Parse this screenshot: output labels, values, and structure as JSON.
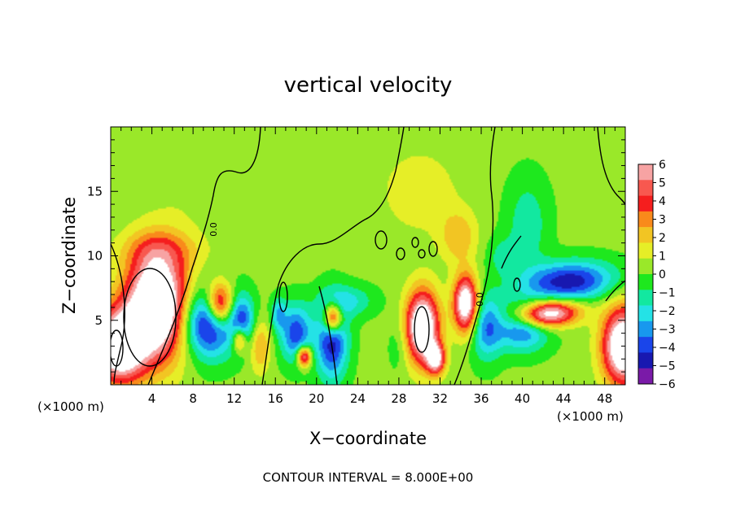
{
  "chart_data": {
    "type": "heatmap",
    "title": "vertical velocity",
    "xlabel": "X−coordinate",
    "ylabel": "Z−coordinate",
    "x_unit": "(×1000 m)",
    "xlim": [
      0,
      50
    ],
    "ylim": [
      0,
      20
    ],
    "x_tick_labels": [
      "4",
      "8",
      "12",
      "16",
      "20",
      "24",
      "28",
      "32",
      "36",
      "40",
      "44",
      "48"
    ],
    "y_tick_labels": [
      "5",
      "10",
      "15"
    ],
    "colorbar": {
      "levels": [
        "6",
        "5",
        "4",
        "3",
        "2",
        "1",
        "0",
        "−1",
        "−2",
        "−3",
        "−4",
        "−5",
        "−6"
      ],
      "range": [
        -6,
        6
      ]
    },
    "contour_label": "0.0",
    "footer": "CONTOUR INTERVAL = 8.000E+00",
    "cells": [
      {
        "name": "updraft-0",
        "x": 0.8,
        "z": 3.0,
        "rx": 2.5,
        "rz": 2.8,
        "a": 10
      },
      {
        "name": "updraft-4",
        "x": 4.5,
        "z": 6.2,
        "rx": 3.0,
        "rz": 4.2,
        "a": 11
      },
      {
        "name": "updraft-4-upper",
        "x": 5.0,
        "z": 10.5,
        "rx": 4.0,
        "rz": 1.5,
        "a": 2
      },
      {
        "name": "updraft-10",
        "x": 10.6,
        "z": 6.2,
        "rx": 1.3,
        "rz": 1.7,
        "a": 8
      },
      {
        "name": "updraft-12",
        "x": 12.5,
        "z": 3.5,
        "rx": 0.7,
        "rz": 1.0,
        "a": 5
      },
      {
        "name": "updraft-14",
        "x": 14.5,
        "z": 3.0,
        "rx": 1.0,
        "rz": 2.0,
        "a": 3
      },
      {
        "name": "updraft-19",
        "x": 18.8,
        "z": 2.2,
        "rx": 0.7,
        "rz": 0.8,
        "a": 7
      },
      {
        "name": "updraft-22",
        "x": 21.6,
        "z": 5.2,
        "rx": 0.9,
        "rz": 1.2,
        "a": 8
      },
      {
        "name": "updraft-30",
        "x": 30.3,
        "z": 4.5,
        "rx": 1.6,
        "rz": 2.8,
        "a": 10
      },
      {
        "name": "updraft-32",
        "x": 31.6,
        "z": 2.0,
        "rx": 0.9,
        "rz": 1.2,
        "a": 7
      },
      {
        "name": "updraft-34",
        "x": 34.5,
        "z": 6.3,
        "rx": 1.2,
        "rz": 2.2,
        "a": 9
      },
      {
        "name": "updraft-34-upper",
        "x": 33.8,
        "z": 11.5,
        "rx": 1.8,
        "rz": 2.0,
        "a": 2.5
      },
      {
        "name": "updraft-42",
        "x": 42.3,
        "z": 5.5,
        "rx": 3.2,
        "rz": 1.0,
        "a": 9,
        "rot": -22
      },
      {
        "name": "updraft-49",
        "x": 49.8,
        "z": 3.0,
        "rx": 2.0,
        "rz": 3.0,
        "a": 10
      },
      {
        "name": "upper-positive-30",
        "x": 30.0,
        "z": 15.0,
        "rx": 4.0,
        "rz": 3.5,
        "a": 1.4
      },
      {
        "name": "upper-positive-8",
        "x": 8.0,
        "z": 15.0,
        "rx": 4.0,
        "rz": 3.0,
        "a": 0.6
      },
      {
        "name": "downdraft-10",
        "x": 9.5,
        "z": 4.8,
        "rx": 2.6,
        "rz": 2.6,
        "a": -7
      },
      {
        "name": "downdraft-13",
        "x": 12.8,
        "z": 5.0,
        "rx": 1.2,
        "rz": 2.0,
        "a": -4
      },
      {
        "name": "downdraft-16",
        "x": 16.3,
        "z": 5.5,
        "rx": 0.7,
        "rz": 1.2,
        "a": -3
      },
      {
        "name": "downdraft-18",
        "x": 18.0,
        "z": 4.0,
        "rx": 1.5,
        "rz": 2.2,
        "a": -5
      },
      {
        "name": "downdraft-21",
        "x": 21.5,
        "z": 3.5,
        "rx": 1.5,
        "rz": 3.0,
        "a": -6
      },
      {
        "name": "downdraft-23",
        "x": 23.0,
        "z": 6.5,
        "rx": 2.5,
        "rz": 1.2,
        "a": -2.5
      },
      {
        "name": "downdraft-36",
        "x": 36.5,
        "z": 4.5,
        "rx": 1.5,
        "rz": 2.5,
        "a": -4
      },
      {
        "name": "downdraft-40",
        "x": 40.0,
        "z": 4.5,
        "rx": 2.5,
        "rz": 1.8,
        "a": -5
      },
      {
        "name": "downdraft-45",
        "x": 44.5,
        "z": 8.0,
        "rx": 4.5,
        "rz": 1.5,
        "a": -6,
        "rot": -22
      },
      {
        "name": "downdraft-41",
        "x": 40.5,
        "z": 12.5,
        "rx": 2.0,
        "rz": 3.5,
        "a": -2
      },
      {
        "name": "downdraft-38",
        "x": 38.0,
        "z": 10.0,
        "rx": 1.5,
        "rz": 1.5,
        "a": -1.5
      },
      {
        "name": "downdraft-28",
        "x": 28.0,
        "z": 3.0,
        "rx": 1.0,
        "rz": 2.0,
        "a": -1
      }
    ]
  }
}
